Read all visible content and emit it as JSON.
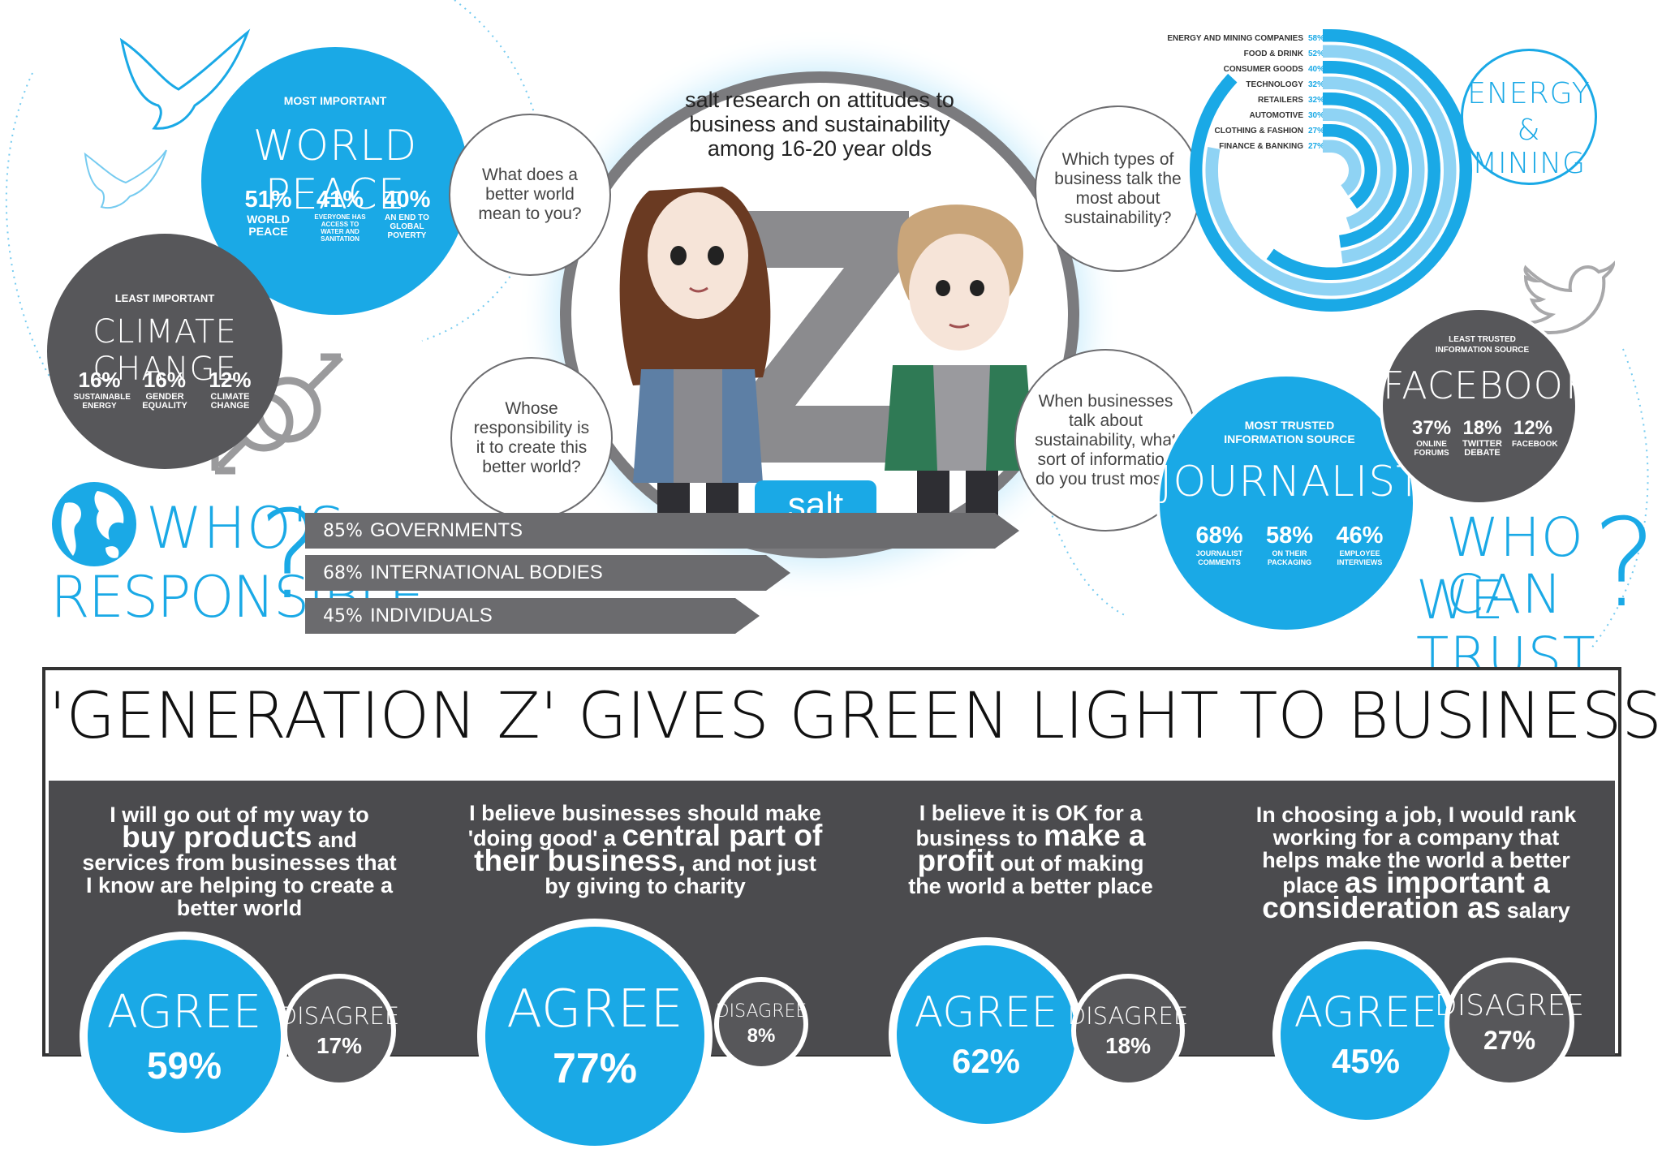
{
  "colors": {
    "accent": "#1aa9e6",
    "dark": "#57575a",
    "panel": "#4b4b4e"
  },
  "world_peace": {
    "kicker": "MOST IMPORTANT",
    "title": "WORLD PEACE",
    "stats": [
      {
        "pct": "51%",
        "label": "WORLD PEACE"
      },
      {
        "pct": "41%",
        "label": "EVERYONE HAS ACCESS TO WATER AND SANITATION"
      },
      {
        "pct": "40%",
        "label": "AN END TO GLOBAL POVERTY"
      }
    ]
  },
  "climate": {
    "kicker": "LEAST IMPORTANT",
    "title": "CLIMATE CHANGE",
    "stats": [
      {
        "pct": "16%",
        "label": "SUSTAINABLE ENERGY"
      },
      {
        "pct": "16%",
        "label": "GENDER EQUALITY"
      },
      {
        "pct": "12%",
        "label": "CLIMATE CHANGE"
      }
    ]
  },
  "center": {
    "title": "salt research on attitudes to business and sustainability among 16-20 year olds",
    "logo": "salt"
  },
  "questions": {
    "q1": "What does a better world mean to you?",
    "q2": "Whose responsibility is it to create this better world?",
    "q3": "Which types of business talk the most about sustainability?",
    "q4": "When businesses talk about sustainability, what sort of information do you trust most?"
  },
  "responsible": {
    "heading_line1": "WHO'S",
    "heading_line2": "RESPONSIBLE",
    "q_mark": "?",
    "bars": [
      {
        "pct": "85%",
        "label": "GOVERNMENTS",
        "value": 85
      },
      {
        "pct": "68%",
        "label": "INTERNATIONAL BODIES",
        "value": 68
      },
      {
        "pct": "45%",
        "label": "INDIVIDUALS",
        "value": 45
      }
    ]
  },
  "sectors": {
    "title_line1": "ENERGY",
    "title_line2": "& MINING",
    "rows": [
      {
        "label": "ENERGY AND MINING COMPANIES",
        "pct": "58%",
        "value": 58
      },
      {
        "label": "FOOD & DRINK",
        "pct": "52%",
        "value": 52
      },
      {
        "label": "CONSUMER GOODS",
        "pct": "40%",
        "value": 40
      },
      {
        "label": "TECHNOLOGY",
        "pct": "32%",
        "value": 32
      },
      {
        "label": "RETAILERS",
        "pct": "32%",
        "value": 32
      },
      {
        "label": "AUTOMOTIVE",
        "pct": "30%",
        "value": 30
      },
      {
        "label": "CLOTHING & FASHION",
        "pct": "27%",
        "value": 27
      },
      {
        "label": "FINANCE & BANKING",
        "pct": "27%",
        "value": 27
      }
    ]
  },
  "trust": {
    "most_kicker": "MOST TRUSTED INFORMATION SOURCE",
    "most_title": "JOURNALISTS",
    "most_stats": [
      {
        "pct": "68%",
        "label": "JOURNALIST COMMENTS"
      },
      {
        "pct": "58%",
        "label": "ON THEIR PACKAGING"
      },
      {
        "pct": "46%",
        "label": "EMPLOYEE INTERVIEWS"
      }
    ],
    "least_kicker": "LEAST TRUSTED INFORMATION SOURCE",
    "least_title": "FACEBOOK",
    "least_stats": [
      {
        "pct": "37%",
        "label": "ONLINE FORUMS"
      },
      {
        "pct": "18%",
        "label": "TWITTER DEBATE"
      },
      {
        "pct": "12%",
        "label": "FACEBOOK"
      }
    ],
    "heading_line1": "WHO CAN",
    "heading_line2": "WE TRUST",
    "q_mark": "?"
  },
  "banner": {
    "title": "'GENERATION Z' GIVES GREEN LIGHT TO BUSINESS"
  },
  "claims": [
    {
      "pre": "I will go out of my way to",
      "bold": "buy products",
      "post": "and services from businesses that I know are helping to create a better world",
      "agree_label": "AGREE",
      "agree": "59%",
      "disagree_label": "DISAGREE",
      "disagree": "17%"
    },
    {
      "pre": "I believe businesses should make 'doing good' a",
      "bold": "central part of their business,",
      "post": "and not just by giving to charity",
      "agree_label": "AGREE",
      "agree": "77%",
      "disagree_label": "DISAGREE",
      "disagree": "8%"
    },
    {
      "pre": "I believe it is OK for a business to",
      "bold": "make a profit",
      "post": "out of making the world a better place",
      "agree_label": "AGREE",
      "agree": "62%",
      "disagree_label": "DISAGREE",
      "disagree": "18%"
    },
    {
      "pre": "In choosing a job, I would rank working for a company that helps make the world a better place",
      "bold": "as important a consideration as",
      "post": "salary",
      "agree_label": "AGREE",
      "agree": "45%",
      "disagree_label": "DISAGREE",
      "disagree": "27%"
    }
  ]
}
